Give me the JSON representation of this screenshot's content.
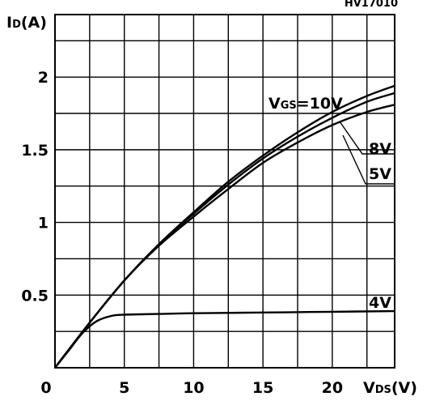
{
  "chart_data": {
    "type": "line",
    "figure_code": "HV17010",
    "ylabel": {
      "main": "I",
      "sub": "D",
      "unit": "(A)"
    },
    "xlabel": {
      "main": "V",
      "sub": "DS",
      "unit": "(V)"
    },
    "xlim": [
      0,
      24.5
    ],
    "ylim": [
      0,
      2.43
    ],
    "x_ticks": [
      0,
      5,
      10,
      15,
      20
    ],
    "x_tick_labels": [
      "0",
      "5",
      "10",
      "15",
      "20"
    ],
    "y_ticks": [
      0.5,
      1,
      1.5,
      2
    ],
    "y_tick_labels": [
      "0.5",
      "1",
      "1.5",
      "2"
    ],
    "grid": {
      "x_step": 2.5,
      "y_step": 0.25
    },
    "series": [
      {
        "name": "VGS=10V",
        "label_main": "V",
        "label_sub": "GS",
        "label_value": "=10V",
        "x": [
          0,
          2.5,
          5,
          7.5,
          10,
          12.5,
          15,
          17.5,
          20,
          22.5,
          24.5
        ],
        "y": [
          0,
          0.31,
          0.6,
          0.85,
          1.07,
          1.28,
          1.46,
          1.62,
          1.76,
          1.87,
          1.94
        ]
      },
      {
        "name": "8V",
        "label_main": "8V",
        "x": [
          0,
          2.5,
          5,
          7.5,
          10,
          12.5,
          15,
          17.5,
          20,
          22.5,
          24.5
        ],
        "y": [
          0,
          0.31,
          0.6,
          0.85,
          1.06,
          1.26,
          1.44,
          1.59,
          1.72,
          1.83,
          1.89
        ]
      },
      {
        "name": "5V",
        "label_main": "5V",
        "x": [
          0,
          2.5,
          5,
          7.5,
          10,
          12.5,
          15,
          17.5,
          20,
          22.5,
          24.5
        ],
        "y": [
          0,
          0.31,
          0.6,
          0.84,
          1.04,
          1.23,
          1.41,
          1.55,
          1.67,
          1.76,
          1.81
        ]
      },
      {
        "name": "4V",
        "label_main": "4V",
        "x": [
          0,
          1,
          2,
          3,
          4,
          5,
          7.5,
          10,
          15,
          20,
          24.5
        ],
        "y": [
          0,
          0.12,
          0.24,
          0.32,
          0.355,
          0.365,
          0.37,
          0.375,
          0.38,
          0.385,
          0.39
        ]
      }
    ]
  }
}
